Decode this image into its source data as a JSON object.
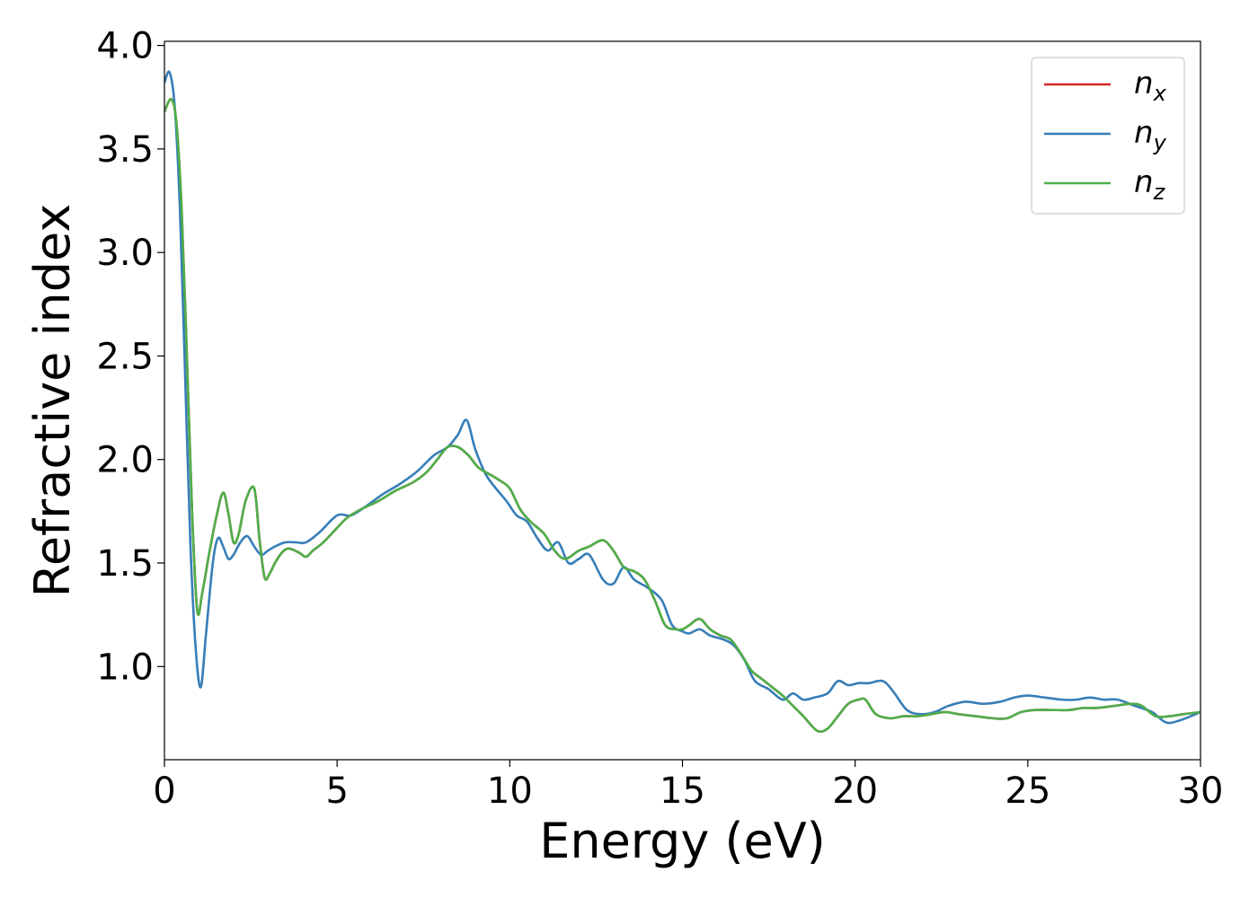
{
  "chart_data": {
    "type": "line",
    "title": "",
    "xlabel": "Energy (eV)",
    "ylabel": "Refractive index",
    "xlim": [
      0,
      30
    ],
    "ylim": [
      0.55,
      4.02
    ],
    "xticks": [
      0,
      5,
      10,
      15,
      20,
      25,
      30
    ],
    "yticks": [
      1.0,
      1.5,
      2.0,
      2.5,
      3.0,
      3.5,
      4.0
    ],
    "xtick_labels": [
      "0",
      "5",
      "10",
      "15",
      "20",
      "25",
      "30"
    ],
    "ytick_labels": [
      "1.0",
      "1.5",
      "2.0",
      "2.5",
      "3.0",
      "3.5",
      "4.0"
    ],
    "grid": false,
    "legend_position": "top-right",
    "series": [
      {
        "name": "n",
        "subscript": "x",
        "color": "#d62728",
        "x": [
          0,
          0.2,
          0.35,
          0.5,
          0.65,
          0.8,
          0.95,
          1.1,
          1.3,
          1.5,
          1.7,
          1.85,
          2.0,
          2.15,
          2.35,
          2.6,
          2.75,
          2.9,
          3.05,
          3.2,
          3.4,
          3.6,
          3.9,
          4.1,
          4.3,
          4.6,
          5.0,
          5.3,
          5.7,
          6.2,
          6.7,
          7.2,
          7.6,
          7.9,
          8.2,
          8.5,
          8.8,
          9.1,
          9.4,
          9.7,
          10.0,
          10.3,
          10.6,
          11.0,
          11.3,
          11.6,
          12.0,
          12.3,
          12.7,
          13.0,
          13.3,
          13.6,
          13.9,
          14.2,
          14.5,
          14.8,
          15.0,
          15.2,
          15.5,
          15.8,
          16.1,
          16.4,
          16.7,
          17.0,
          17.3,
          17.6,
          17.9,
          18.2,
          18.5,
          18.9,
          19.2,
          19.5,
          19.8,
          20.1,
          20.3,
          20.6,
          21.0,
          21.4,
          21.8,
          22.2,
          22.6,
          23.0,
          23.5,
          24.0,
          24.4,
          24.8,
          25.2,
          25.7,
          26.2,
          26.6,
          27.0,
          27.5,
          28.0,
          28.3,
          28.7,
          29.1,
          29.5,
          30.0
        ],
        "y": [
          3.68,
          3.74,
          3.62,
          3.2,
          2.5,
          1.75,
          1.27,
          1.36,
          1.55,
          1.72,
          1.84,
          1.74,
          1.6,
          1.64,
          1.8,
          1.86,
          1.62,
          1.43,
          1.45,
          1.5,
          1.55,
          1.57,
          1.55,
          1.53,
          1.56,
          1.6,
          1.67,
          1.72,
          1.76,
          1.8,
          1.85,
          1.89,
          1.94,
          2.0,
          2.06,
          2.06,
          2.02,
          1.96,
          1.93,
          1.9,
          1.86,
          1.76,
          1.7,
          1.64,
          1.56,
          1.52,
          1.56,
          1.58,
          1.61,
          1.56,
          1.48,
          1.46,
          1.42,
          1.32,
          1.2,
          1.18,
          1.18,
          1.2,
          1.23,
          1.18,
          1.15,
          1.13,
          1.06,
          0.98,
          0.94,
          0.9,
          0.86,
          0.81,
          0.76,
          0.69,
          0.7,
          0.76,
          0.82,
          0.84,
          0.84,
          0.77,
          0.75,
          0.76,
          0.76,
          0.77,
          0.78,
          0.77,
          0.76,
          0.75,
          0.75,
          0.78,
          0.79,
          0.79,
          0.79,
          0.8,
          0.8,
          0.81,
          0.82,
          0.81,
          0.76,
          0.76,
          0.77,
          0.78
        ]
      },
      {
        "name": "n",
        "subscript": "y",
        "color": "#377eb8",
        "x": [
          0,
          0.15,
          0.3,
          0.45,
          0.6,
          0.75,
          0.9,
          1.05,
          1.2,
          1.4,
          1.55,
          1.7,
          1.85,
          2.0,
          2.2,
          2.4,
          2.6,
          2.8,
          3.0,
          3.2,
          3.5,
          3.8,
          4.1,
          4.5,
          5.0,
          5.4,
          5.8,
          6.3,
          6.8,
          7.3,
          7.8,
          8.2,
          8.5,
          8.75,
          9.0,
          9.3,
          9.6,
          9.9,
          10.2,
          10.5,
          10.8,
          11.1,
          11.4,
          11.7,
          12.0,
          12.3,
          12.7,
          13.0,
          13.3,
          13.6,
          14.0,
          14.4,
          14.7,
          15.0,
          15.2,
          15.5,
          15.8,
          16.2,
          16.5,
          16.8,
          17.1,
          17.5,
          17.9,
          18.2,
          18.5,
          18.8,
          19.2,
          19.5,
          19.8,
          20.1,
          20.4,
          20.8,
          21.1,
          21.5,
          21.9,
          22.3,
          22.7,
          23.2,
          23.7,
          24.2,
          24.6,
          25.0,
          25.5,
          26.0,
          26.4,
          26.8,
          27.2,
          27.6,
          28.1,
          28.6,
          29.0,
          29.4,
          30.0
        ],
        "y": [
          3.82,
          3.87,
          3.7,
          3.2,
          2.4,
          1.6,
          1.1,
          0.9,
          1.15,
          1.5,
          1.62,
          1.58,
          1.52,
          1.54,
          1.6,
          1.63,
          1.58,
          1.54,
          1.56,
          1.58,
          1.6,
          1.6,
          1.6,
          1.65,
          1.73,
          1.73,
          1.77,
          1.83,
          1.88,
          1.94,
          2.02,
          2.06,
          2.12,
          2.19,
          2.05,
          1.93,
          1.86,
          1.8,
          1.73,
          1.7,
          1.62,
          1.56,
          1.6,
          1.5,
          1.52,
          1.54,
          1.42,
          1.4,
          1.48,
          1.42,
          1.38,
          1.32,
          1.2,
          1.17,
          1.16,
          1.18,
          1.15,
          1.13,
          1.1,
          1.03,
          0.93,
          0.89,
          0.84,
          0.87,
          0.84,
          0.85,
          0.87,
          0.93,
          0.91,
          0.92,
          0.92,
          0.93,
          0.88,
          0.79,
          0.77,
          0.78,
          0.81,
          0.83,
          0.82,
          0.83,
          0.85,
          0.86,
          0.85,
          0.84,
          0.84,
          0.85,
          0.84,
          0.84,
          0.81,
          0.78,
          0.73,
          0.74,
          0.78
        ]
      },
      {
        "name": "n",
        "subscript": "z",
        "color": "#4daf4a",
        "x": [
          0,
          0.2,
          0.35,
          0.5,
          0.65,
          0.8,
          0.95,
          1.1,
          1.3,
          1.5,
          1.7,
          1.85,
          2.0,
          2.15,
          2.35,
          2.6,
          2.75,
          2.9,
          3.05,
          3.2,
          3.4,
          3.6,
          3.9,
          4.1,
          4.3,
          4.6,
          5.0,
          5.3,
          5.7,
          6.2,
          6.7,
          7.2,
          7.6,
          7.9,
          8.2,
          8.5,
          8.8,
          9.1,
          9.4,
          9.7,
          10.0,
          10.3,
          10.6,
          11.0,
          11.3,
          11.6,
          12.0,
          12.3,
          12.7,
          13.0,
          13.3,
          13.6,
          13.9,
          14.2,
          14.5,
          14.8,
          15.0,
          15.2,
          15.5,
          15.8,
          16.1,
          16.4,
          16.7,
          17.0,
          17.3,
          17.6,
          17.9,
          18.2,
          18.5,
          18.9,
          19.2,
          19.5,
          19.8,
          20.1,
          20.3,
          20.6,
          21.0,
          21.4,
          21.8,
          22.2,
          22.6,
          23.0,
          23.5,
          24.0,
          24.4,
          24.8,
          25.2,
          25.7,
          26.2,
          26.6,
          27.0,
          27.5,
          28.0,
          28.3,
          28.7,
          29.1,
          29.5,
          30.0
        ],
        "y": [
          3.68,
          3.74,
          3.62,
          3.2,
          2.5,
          1.75,
          1.27,
          1.36,
          1.55,
          1.72,
          1.84,
          1.74,
          1.6,
          1.64,
          1.8,
          1.86,
          1.62,
          1.43,
          1.45,
          1.5,
          1.55,
          1.57,
          1.55,
          1.53,
          1.56,
          1.6,
          1.67,
          1.72,
          1.76,
          1.8,
          1.85,
          1.89,
          1.94,
          2.0,
          2.06,
          2.06,
          2.02,
          1.96,
          1.93,
          1.9,
          1.86,
          1.76,
          1.7,
          1.64,
          1.56,
          1.52,
          1.56,
          1.58,
          1.61,
          1.56,
          1.48,
          1.46,
          1.42,
          1.32,
          1.2,
          1.18,
          1.18,
          1.2,
          1.23,
          1.18,
          1.15,
          1.13,
          1.06,
          0.98,
          0.94,
          0.9,
          0.86,
          0.81,
          0.76,
          0.69,
          0.7,
          0.76,
          0.82,
          0.84,
          0.84,
          0.77,
          0.75,
          0.76,
          0.76,
          0.77,
          0.78,
          0.77,
          0.76,
          0.75,
          0.75,
          0.78,
          0.79,
          0.79,
          0.79,
          0.8,
          0.8,
          0.81,
          0.82,
          0.81,
          0.76,
          0.76,
          0.77,
          0.78
        ]
      }
    ]
  }
}
